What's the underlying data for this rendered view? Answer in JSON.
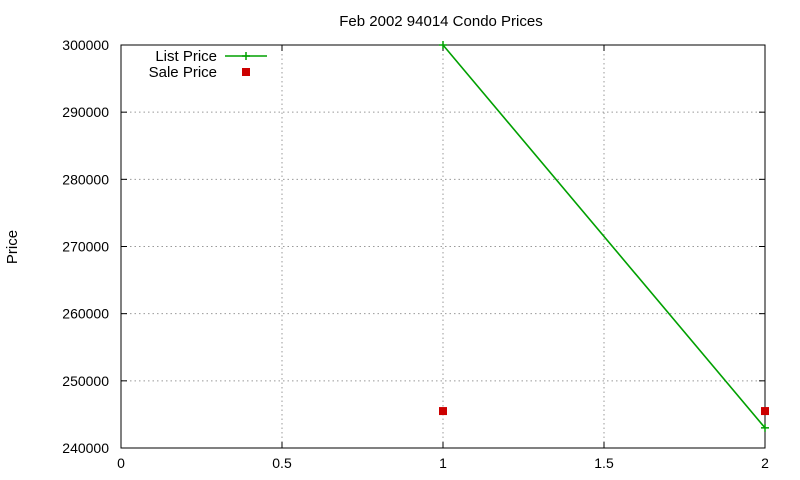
{
  "chart_data": {
    "type": "line",
    "title": "Feb 2002 94014 Condo Prices",
    "xlabel": "",
    "ylabel": "Price",
    "xlim": [
      0,
      2
    ],
    "ylim": [
      240000,
      300000
    ],
    "x_ticks": [
      0,
      0.5,
      1,
      1.5,
      2
    ],
    "x_tick_labels": [
      "0",
      "0.5",
      "1",
      "1.5",
      "2"
    ],
    "y_ticks": [
      240000,
      250000,
      260000,
      270000,
      280000,
      290000,
      300000
    ],
    "y_tick_labels": [
      "240000",
      "250000",
      "260000",
      "270000",
      "280000",
      "290000",
      "300000"
    ],
    "grid": true,
    "legend_position": "top-left",
    "series": [
      {
        "name": "List Price",
        "style": "linespoints",
        "marker": "plus",
        "color": "#00a000",
        "x": [
          1,
          2
        ],
        "y": [
          300000,
          243000
        ]
      },
      {
        "name": "Sale Price",
        "style": "points",
        "marker": "square",
        "color": "#cc0000",
        "x": [
          1,
          2
        ],
        "y": [
          245500,
          245500
        ]
      }
    ]
  }
}
